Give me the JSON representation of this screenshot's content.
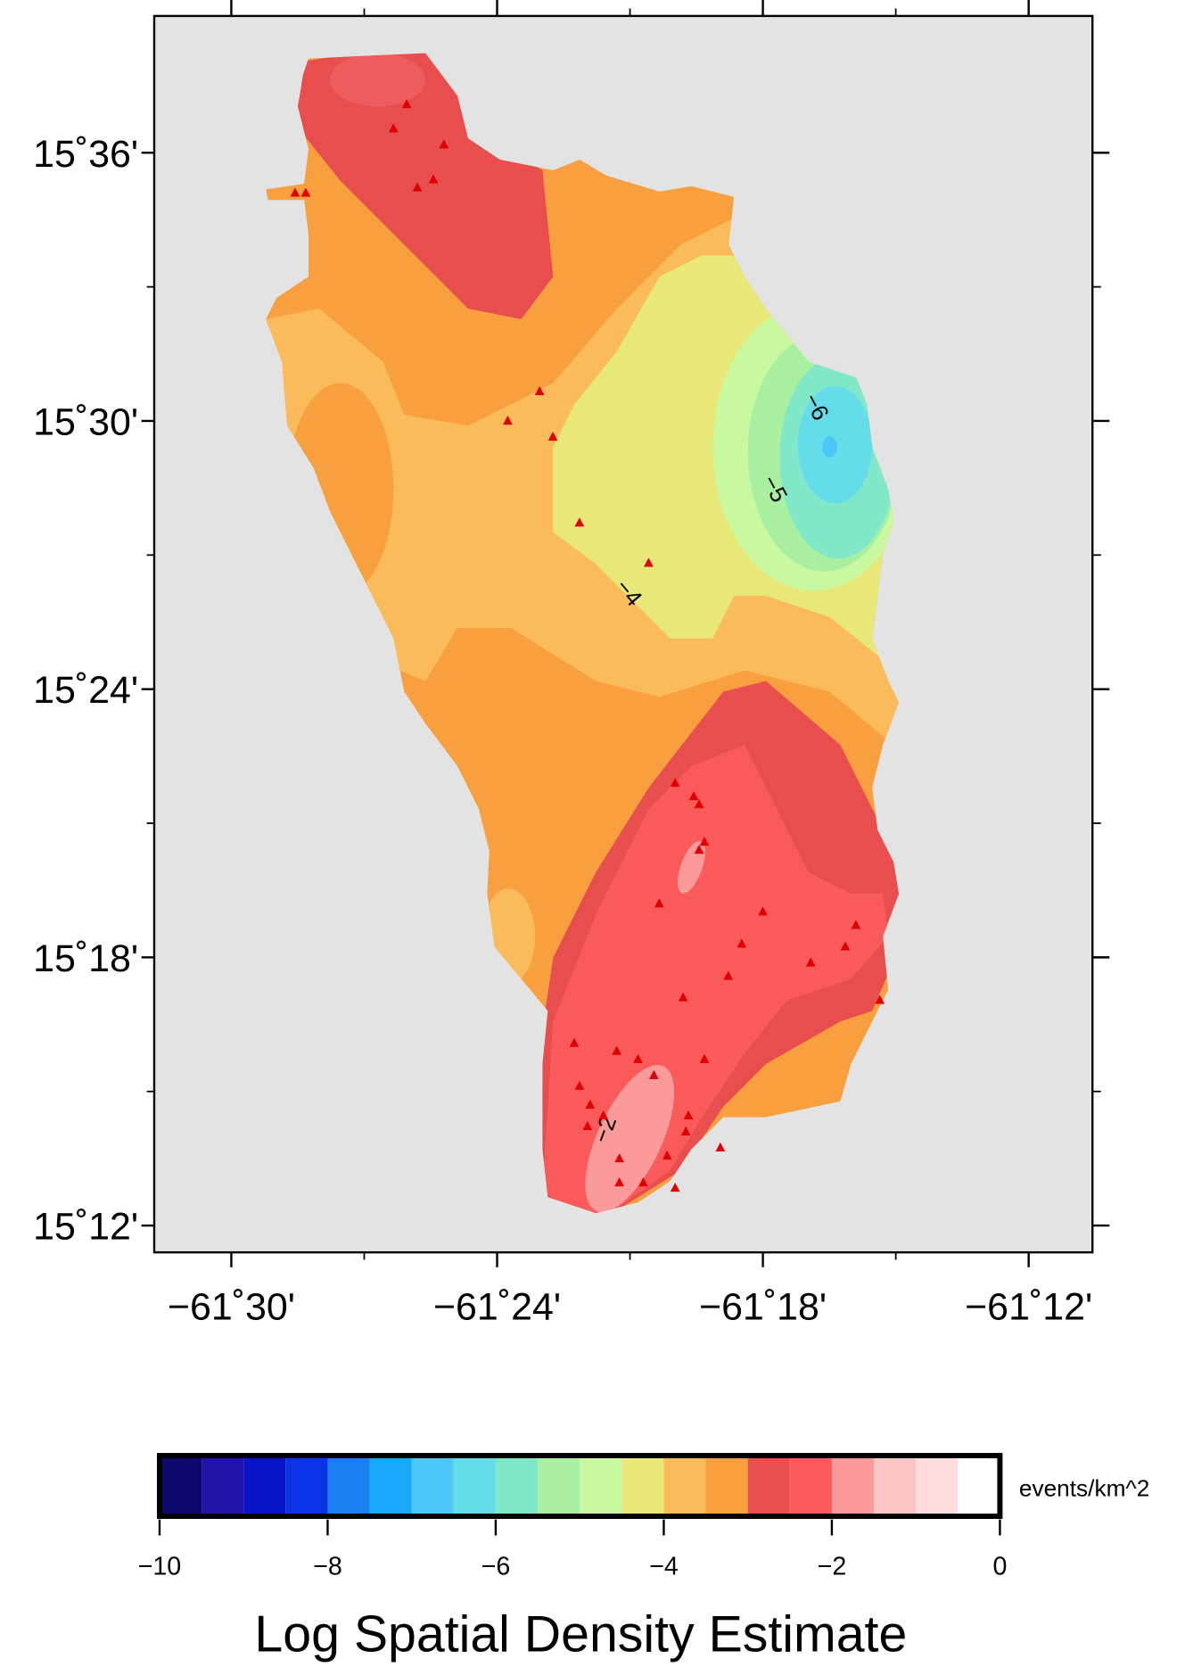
{
  "chart_data": {
    "type": "map",
    "title": "Log Spatial Density Estimate",
    "xlim": [
      -61.529,
      -61.176
    ],
    "ylim": [
      15.19,
      15.651
    ],
    "xticks": [
      {
        "value": -61.5,
        "label": "−61˚30'"
      },
      {
        "value": -61.4,
        "label": "−61˚24'"
      },
      {
        "value": -61.3,
        "label": "−61˚18'"
      },
      {
        "value": -61.2,
        "label": "−61˚12'"
      }
    ],
    "yticks": [
      {
        "value": 15.6,
        "label": "15˚36'"
      },
      {
        "value": 15.5,
        "label": "15˚30'"
      },
      {
        "value": 15.4,
        "label": "15˚24'"
      },
      {
        "value": 15.3,
        "label": "15˚18'"
      },
      {
        "value": 15.2,
        "label": "15˚12'"
      }
    ],
    "xminor": [
      -61.45,
      -61.35,
      -61.25
    ],
    "yminor": [
      15.55,
      15.45,
      15.35,
      15.25
    ],
    "contour_labels": [
      "−6",
      "−5",
      "−4",
      "−2"
    ],
    "events": {
      "color": "#e00000",
      "lon": [
        -61.434,
        -61.439,
        -61.42,
        -61.424,
        -61.43,
        -61.476,
        -61.472,
        -61.384,
        -61.396,
        -61.379,
        -61.369,
        -61.343,
        -61.333,
        -61.326,
        -61.324,
        -61.322,
        -61.324,
        -61.339,
        -61.3,
        -61.308,
        -61.265,
        -61.269,
        -61.282,
        -61.313,
        -61.33,
        -61.256,
        -61.371,
        -61.355,
        -61.347,
        -61.322,
        -61.369,
        -61.341,
        -61.365,
        -61.36,
        -61.366,
        -61.328,
        -61.329,
        -61.316,
        -61.354,
        -61.336,
        -61.354,
        -61.345,
        -61.333
      ],
      "lat": [
        15.618,
        15.609,
        15.603,
        15.59,
        15.587,
        15.585,
        15.585,
        15.511,
        15.5,
        15.494,
        15.462,
        15.447,
        15.365,
        15.36,
        15.357,
        15.343,
        15.34,
        15.32,
        15.317,
        15.305,
        15.312,
        15.304,
        15.298,
        15.293,
        15.285,
        15.284,
        15.268,
        15.265,
        15.262,
        15.262,
        15.252,
        15.256,
        15.245,
        15.241,
        15.237,
        15.241,
        15.235,
        15.229,
        15.225,
        15.226,
        15.216,
        15.216,
        15.214
      ]
    },
    "colorbar": {
      "label": "events/km^2",
      "bins": [
        -10,
        -9.5,
        -9,
        -8.5,
        -8,
        -7.5,
        -7,
        -6.5,
        -6,
        -5.5,
        -5,
        -4.5,
        -4,
        -3.5,
        -3,
        -2.5,
        -2,
        -1.5,
        -1,
        -0.5,
        0
      ],
      "colors": [
        "#0d0a6b",
        "#2314a8",
        "#0a14c8",
        "#0a32e6",
        "#1a80f2",
        "#1aa8fa",
        "#4cc8f8",
        "#64dcea",
        "#80e8c8",
        "#a8f0a0",
        "#c8f8a0",
        "#e8e878",
        "#fbbb5a",
        "#f8a040",
        "#e84e4e",
        "#fa5a5a",
        "#fa9a9a",
        "#fcc4c4",
        "#fcdcdc",
        "#ffffff"
      ],
      "ticks": [
        {
          "value": -10,
          "label": "−10"
        },
        {
          "value": -8,
          "label": "−8"
        },
        {
          "value": -6,
          "label": "−6"
        },
        {
          "value": -4,
          "label": "−4"
        },
        {
          "value": -2,
          "label": "−2"
        },
        {
          "value": 0,
          "label": "0"
        }
      ]
    }
  }
}
